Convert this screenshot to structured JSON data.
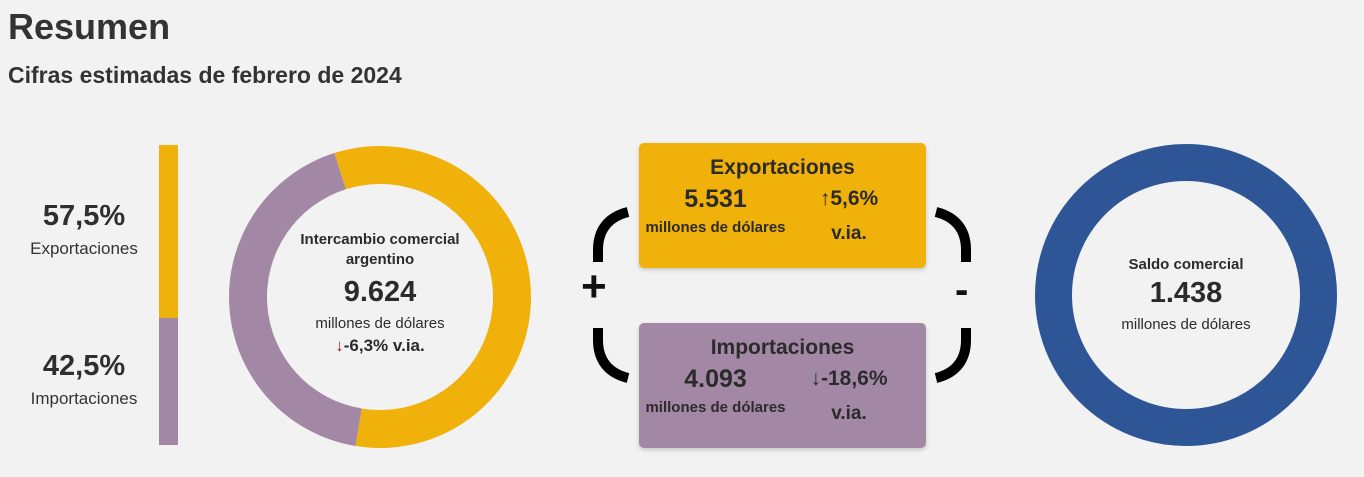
{
  "title": "Resumen",
  "subtitle": "Cifras estimadas de febrero de 2024",
  "colors": {
    "exportaciones": "#f0b10a",
    "importaciones": "#a388a6",
    "saldo": "#2e5697",
    "negative": "#b11d1d"
  },
  "shares": {
    "exportaciones": {
      "value": "57,5%",
      "label": "Exportaciones"
    },
    "importaciones": {
      "value": "42,5%",
      "label": "Importaciones"
    }
  },
  "intercambio": {
    "heading": "Intercambio comercial argentino",
    "value": "9.624",
    "unit": "millones de dólares",
    "change_arrow": "↓",
    "change": "-6,3% v.ia."
  },
  "exportaciones": {
    "title": "Exportaciones",
    "value": "5.531",
    "unit": "millones de dólares",
    "change_arrow": "↑",
    "change": "5,6%",
    "change_label": "v.ia."
  },
  "importaciones": {
    "title": "Importaciones",
    "value": "4.093",
    "unit": "millones de dólares",
    "change_arrow": "↓",
    "change": "-18,6%",
    "change_label": "v.ia."
  },
  "saldo": {
    "heading": "Saldo comercial",
    "value": "1.438",
    "unit": "millones de dólares"
  },
  "operators": {
    "plus": "+",
    "minus": "-"
  },
  "chart_data": [
    {
      "type": "bar",
      "categories": [
        "Exportaciones",
        "Importaciones"
      ],
      "values": [
        57.5,
        42.5
      ],
      "stacked": true,
      "orientation": "vertical"
    },
    {
      "type": "pie",
      "donut": true,
      "categories": [
        "Exportaciones",
        "Importaciones"
      ],
      "values": [
        5531,
        4093
      ]
    },
    {
      "type": "pie",
      "donut": true,
      "categories": [
        "Saldo comercial"
      ],
      "values": [
        1438
      ]
    }
  ]
}
